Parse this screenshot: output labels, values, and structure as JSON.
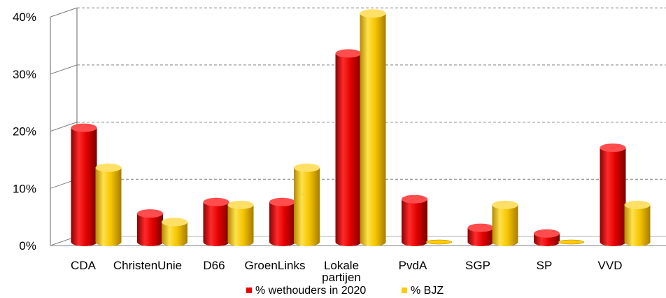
{
  "chart_data": {
    "type": "bar",
    "categories": [
      "CDA",
      "ChristenUnie",
      "D66",
      "GroenLinks",
      "Lokale partijen",
      "PvdA",
      "SGP",
      "SP",
      "VVD"
    ],
    "series": [
      {
        "name": "% wethouders in 2020",
        "color": "#e60000",
        "values": [
          20,
          5,
          7,
          7,
          33,
          7.5,
          2.5,
          1.5,
          16.5
        ]
      },
      {
        "name": "% BJZ",
        "color": "#ffcc00",
        "values": [
          13,
          3.5,
          6.5,
          13,
          40,
          0,
          6.5,
          0,
          6.5
        ]
      }
    ],
    "y_ticks": [
      "0%",
      "10%",
      "20%",
      "30%",
      "40%"
    ],
    "ylim": [
      0,
      40
    ],
    "y_unit": "%",
    "grid": "dashed horizontal",
    "legend_position": "bottom",
    "style": "3d-cylinder"
  }
}
